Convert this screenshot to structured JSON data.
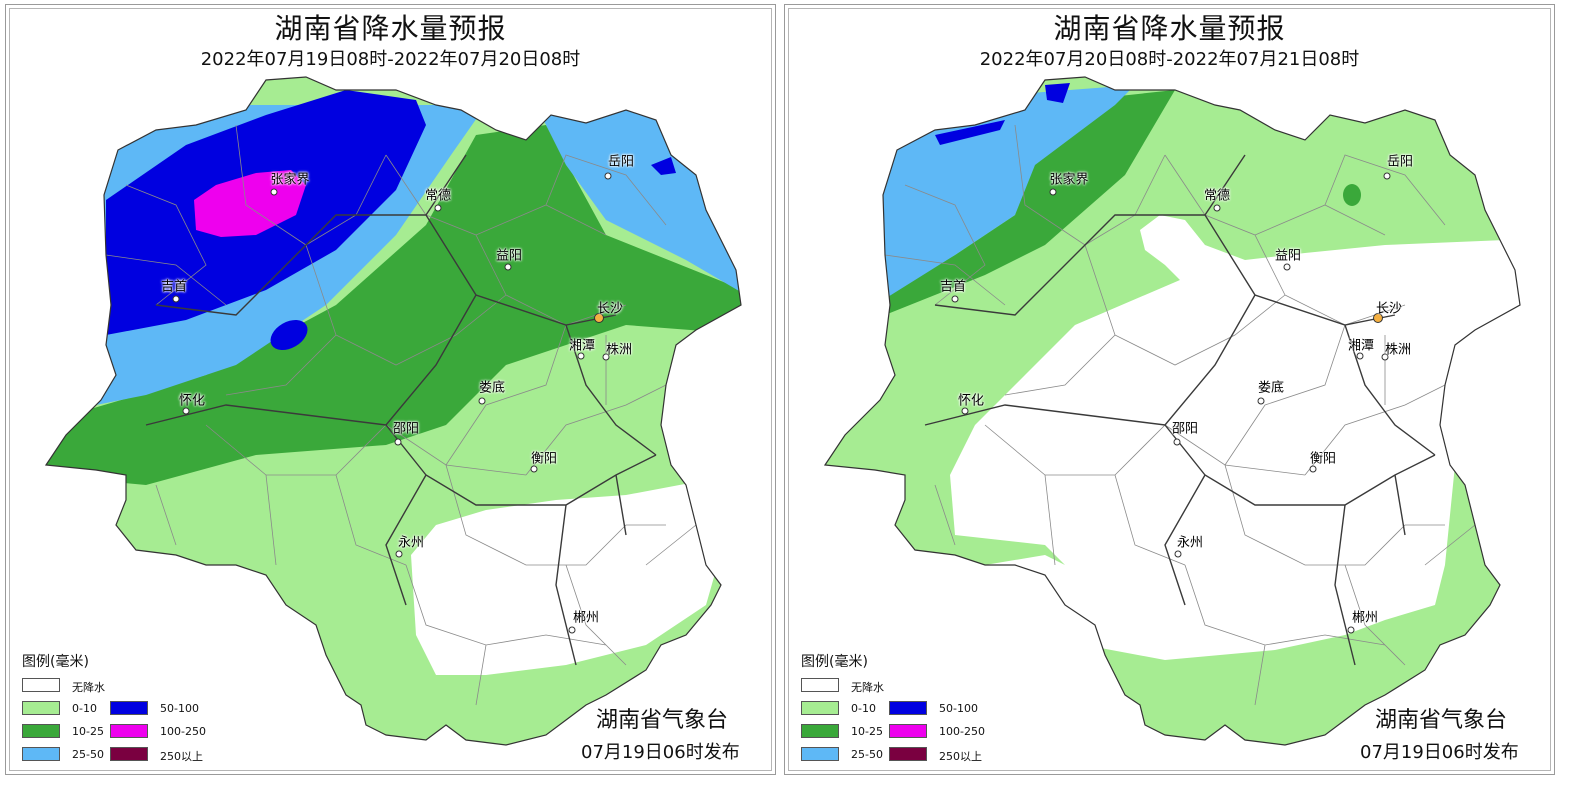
{
  "colors": {
    "none": "#ffffff",
    "light_green": "#a6ec92",
    "green": "#3aa83a",
    "light_blue": "#5eb8f6",
    "blue": "#0000e0",
    "magenta": "#ee00ee",
    "maroon": "#7a0040",
    "county_line": "#8a8a8a",
    "prefecture_line": "#3a3a3a"
  },
  "panels": [
    {
      "title": "湖南省降水量预报",
      "subtitle": "2022年07月19日08时-2022年07月20日08时",
      "issuer": "湖南省气象台",
      "issued": "07月19日06时发布"
    },
    {
      "title": "湖南省降水量预报",
      "subtitle": "2022年07月20日08时-2022年07月21日08时",
      "issuer": "湖南省气象台",
      "issued": "07月19日06时发布"
    }
  ],
  "cities": {
    "zhangjiajie": "张家界",
    "yueyang": "岳阳",
    "changde": "常德",
    "yiyang": "益阳",
    "jishou": "吉首",
    "changsha": "长沙",
    "xiangtan": "湘潭",
    "zhuzhou": "株洲",
    "loudi": "娄底",
    "huaihua": "怀化",
    "shaoyang": "邵阳",
    "hengyang": "衡阳",
    "yongzhou": "永州",
    "chenzhou": "郴州"
  },
  "legend": {
    "title": "图例(毫米)",
    "items": [
      {
        "label": "无降水",
        "color": "#ffffff"
      },
      {
        "label": "0-10",
        "color": "#a6ec92"
      },
      {
        "label": "10-25",
        "color": "#3aa83a"
      },
      {
        "label": "25-50",
        "color": "#5eb8f6"
      },
      {
        "label": "50-100",
        "color": "#0000e0"
      },
      {
        "label": "100-250",
        "color": "#ee00ee"
      },
      {
        "label": "250以上",
        "color": "#7a0040"
      }
    ]
  }
}
